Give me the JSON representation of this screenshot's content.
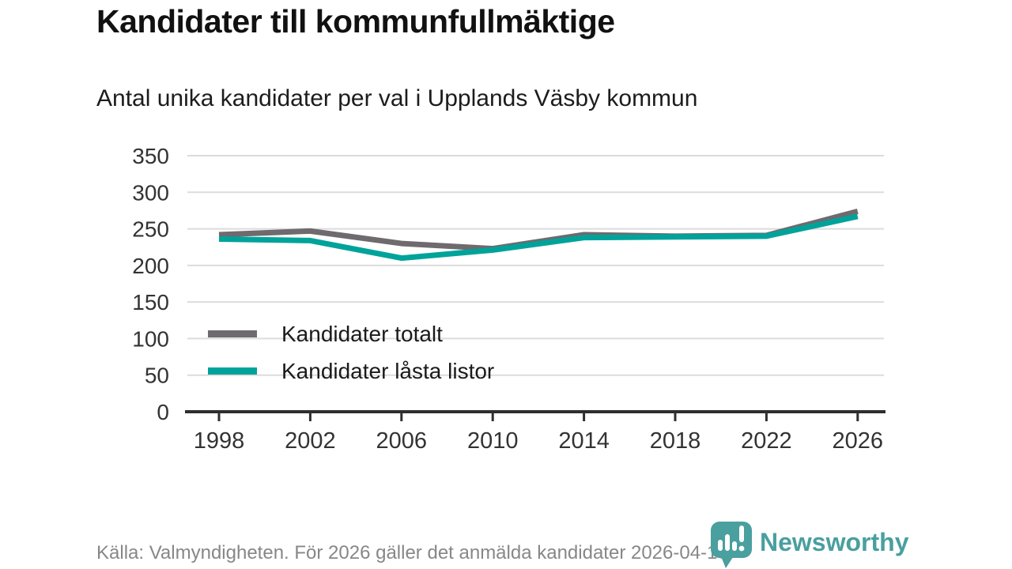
{
  "header": {
    "title": "Kandidater till kommunfullmäktige",
    "subtitle": "Antal unika kandidater per val i Upplands Väsby kommun"
  },
  "chart_data": {
    "type": "line",
    "categories": [
      1998,
      2002,
      2006,
      2010,
      2014,
      2018,
      2022,
      2026
    ],
    "series": [
      {
        "name": "Kandidater totalt",
        "color": "#6e6a6e",
        "values": [
          242,
          247,
          230,
          223,
          242,
          240,
          241,
          274
        ]
      },
      {
        "name": "Kandidater låsta listor",
        "color": "#00a39a",
        "values": [
          236,
          234,
          210,
          221,
          238,
          239,
          240,
          267
        ]
      }
    ],
    "title": "Kandidater till kommunfullmäktige",
    "subtitle": "Antal unika kandidater per val i Upplands Väsby kommun",
    "xlabel": "",
    "ylabel": "",
    "ylim": [
      0,
      350
    ],
    "yticks": [
      0,
      50,
      100,
      150,
      200,
      250,
      300,
      350
    ],
    "grid": true,
    "legend_position": "inside-left"
  },
  "footer": {
    "source": "Källa: Valmyndigheten. För 2026 gäller det anmälda kandidater 2026-04-10.",
    "logo_text": "Newsworthy"
  },
  "colors": {
    "gridline": "#dcdcdc",
    "axis": "#2e2e2e",
    "tick_text": "#333333",
    "logo_teal": "#4a9f9f"
  }
}
